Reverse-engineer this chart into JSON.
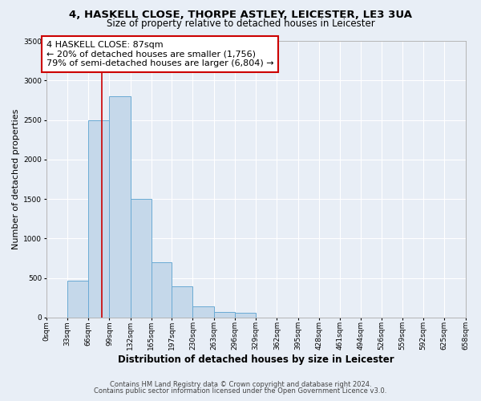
{
  "title_line1": "4, HASKELL CLOSE, THORPE ASTLEY, LEICESTER, LE3 3UA",
  "title_line2": "Size of property relative to detached houses in Leicester",
  "xlabel": "Distribution of detached houses by size in Leicester",
  "ylabel": "Number of detached properties",
  "bar_edges": [
    0,
    33,
    66,
    99,
    132,
    165,
    197,
    230,
    263,
    296,
    329,
    362,
    395,
    428,
    461,
    494,
    526,
    559,
    592,
    625,
    658
  ],
  "bar_heights": [
    0,
    470,
    2500,
    2800,
    1500,
    700,
    390,
    140,
    75,
    60,
    0,
    0,
    0,
    0,
    0,
    0,
    0,
    0,
    0,
    0
  ],
  "bar_color": "#c5d8ea",
  "bar_edgecolor": "#6aaad4",
  "bar_linewidth": 0.7,
  "vline_x": 87,
  "vline_color": "#cc0000",
  "ylim": [
    0,
    3500
  ],
  "yticks": [
    0,
    500,
    1000,
    1500,
    2000,
    2500,
    3000,
    3500
  ],
  "tick_labels": [
    "0sqm",
    "33sqm",
    "66sqm",
    "99sqm",
    "132sqm",
    "165sqm",
    "197sqm",
    "230sqm",
    "263sqm",
    "296sqm",
    "329sqm",
    "362sqm",
    "395sqm",
    "428sqm",
    "461sqm",
    "494sqm",
    "526sqm",
    "559sqm",
    "592sqm",
    "625sqm",
    "658sqm"
  ],
  "annotation_title": "4 HASKELL CLOSE: 87sqm",
  "annotation_line1": "← 20% of detached houses are smaller (1,756)",
  "annotation_line2": "79% of semi-detached houses are larger (6,804) →",
  "annotation_box_color": "#ffffff",
  "annotation_box_edgecolor": "#cc0000",
  "footnote1": "Contains HM Land Registry data © Crown copyright and database right 2024.",
  "footnote2": "Contains public sector information licensed under the Open Government Licence v3.0.",
  "bg_color": "#e8eef6",
  "plot_bg_color": "#e8eef6",
  "grid_color": "#ffffff",
  "title_fontsize": 9.5,
  "subtitle_fontsize": 8.5,
  "xlabel_fontsize": 8.5,
  "ylabel_fontsize": 8,
  "tick_fontsize": 6.5,
  "annotation_fontsize": 8,
  "footnote_fontsize": 6
}
